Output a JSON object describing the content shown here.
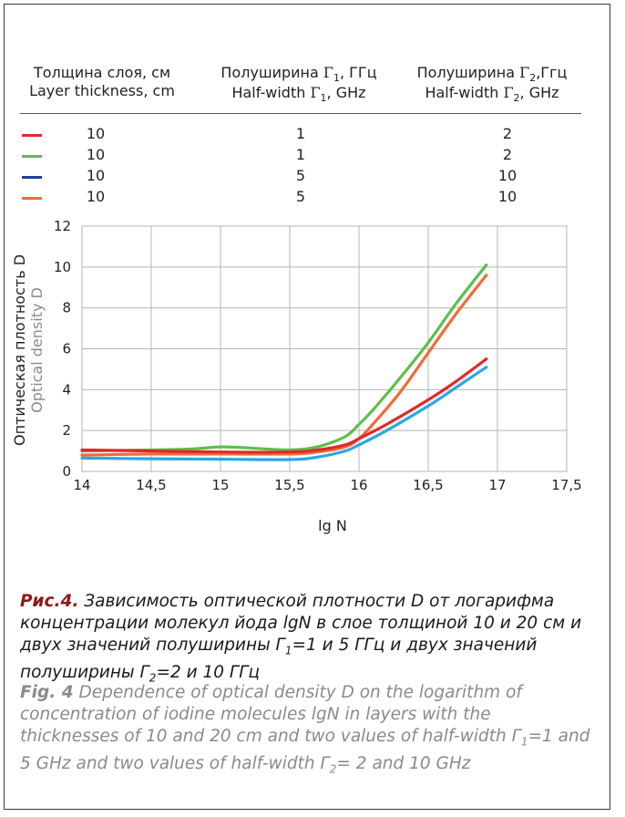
{
  "header": {
    "col1_ru": "Толщина слоя, см",
    "col1_en": "Layer thickness, cm",
    "col2_ru_pre": "Полуширина ",
    "col2_ru_post": ", ГГц",
    "col2_en_pre": "Half-width ",
    "col2_en_post": ", GHz",
    "col3_ru_pre": "Полуширина ",
    "col3_ru_post": ",Ггц",
    "col3_en_pre": "Half-width ",
    "col3_en_post": ", GHz",
    "gamma": "Γ",
    "sub1": "1",
    "sub2": "2"
  },
  "legend": [
    {
      "color": "#e02828",
      "thickness": "10",
      "g1": "1",
      "g2": "2"
    },
    {
      "color": "#5cbf4a",
      "thickness": "10",
      "g1": "1",
      "g2": "2"
    },
    {
      "color": "#1f3f9a",
      "thickness": "10",
      "g1": "5",
      "g2": "10"
    },
    {
      "color": "#f06a3a",
      "thickness": "10",
      "g1": "5",
      "g2": "10"
    }
  ],
  "chart_data": {
    "type": "line",
    "xlabel": "lg N",
    "ylabel_ru": "Оптическая плотность D",
    "ylabel_en": "Optical density D",
    "xlim": [
      14,
      17.5
    ],
    "ylim": [
      0,
      12
    ],
    "xticks": [
      14,
      14.5,
      15,
      15.5,
      16,
      16.5,
      17,
      17.5
    ],
    "xtick_labels": [
      "14",
      "14,5",
      "15",
      "15,5",
      "16",
      "16,5",
      "17",
      "17,5"
    ],
    "yticks": [
      0,
      2,
      4,
      6,
      8,
      10,
      12
    ],
    "ytick_labels": [
      "0",
      "2",
      "4",
      "6",
      "8",
      "10",
      "12"
    ],
    "grid": true,
    "series": [
      {
        "color": "#5cbf4a",
        "x": [
          14,
          14.5,
          14.8,
          15,
          15.2,
          15.5,
          15.7,
          15.9,
          16,
          16.1,
          16.3,
          16.5,
          16.7,
          16.92
        ],
        "y": [
          1.0,
          1.05,
          1.1,
          1.2,
          1.15,
          1.05,
          1.2,
          1.7,
          2.3,
          3.0,
          4.6,
          6.3,
          8.2,
          10.1
        ]
      },
      {
        "color": "#f06a3a",
        "x": [
          14,
          14.5,
          15,
          15.5,
          15.7,
          15.9,
          16,
          16.1,
          16.3,
          16.5,
          16.7,
          16.92
        ],
        "y": [
          0.8,
          0.85,
          0.85,
          0.85,
          0.95,
          1.2,
          1.6,
          2.3,
          3.9,
          5.8,
          7.7,
          9.6
        ]
      },
      {
        "color": "#e02828",
        "x": [
          14,
          14.5,
          15,
          15.5,
          15.7,
          15.9,
          16,
          16.2,
          16.5,
          16.7,
          16.92
        ],
        "y": [
          1.05,
          1.0,
          0.95,
          0.95,
          1.05,
          1.3,
          1.6,
          2.3,
          3.5,
          4.4,
          5.5
        ]
      },
      {
        "color": "#2aa7e6",
        "x": [
          14,
          14.5,
          15,
          15.5,
          15.7,
          15.9,
          16,
          16.2,
          16.5,
          16.7,
          16.92
        ],
        "y": [
          0.65,
          0.62,
          0.6,
          0.58,
          0.7,
          1.0,
          1.3,
          2.0,
          3.2,
          4.1,
          5.1
        ]
      }
    ]
  },
  "caption": {
    "ru_label": "Рис.4.",
    "ru_text": " Зависимость оптической плотности D от логарифма концентрации молекул йода lgN в слое толщиной 10 и 20 см и двух значений полуширины Γ",
    "ru_text2": "=1 и 5 ГГц и двух значений полуширины Γ",
    "ru_text3": "=2 и 10 ГГц",
    "en_label": "Fig. 4",
    "en_text": " Dependence of optical density D on the logarithm of concentration of iodine molecules lgN in layers with the thicknesses of 10 and 20 cm and two values of half-width Γ",
    "en_text2": "=1 and 5 GHz and two values of half-width Γ",
    "en_text3": "= 2 and 10 GHz",
    "sub1": "1",
    "sub2": "2"
  }
}
